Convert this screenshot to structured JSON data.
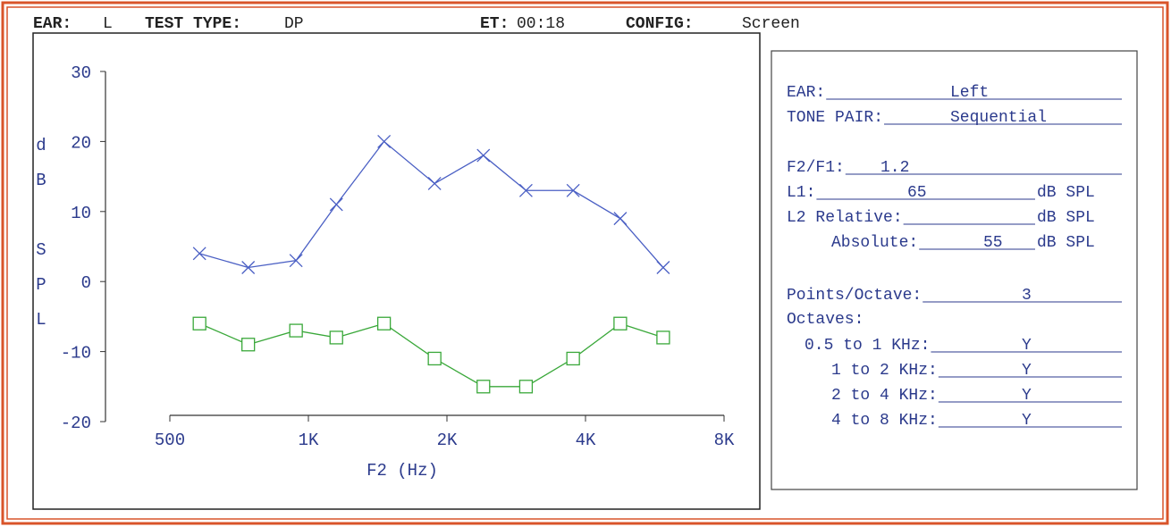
{
  "header": {
    "fields": [
      {
        "label": "EAR:",
        "value": "L"
      },
      {
        "label": "TEST TYPE:",
        "value": "DP"
      },
      {
        "label": "ET:",
        "value": "00:18"
      },
      {
        "label": "CONFIG:",
        "value": "Screen"
      }
    ]
  },
  "chart_data": {
    "type": "line",
    "x_label": "F2 (Hz)",
    "y_label": "dB SPL",
    "x": [
      580,
      740,
      940,
      1150,
      1460,
      1880,
      2400,
      2970,
      3760,
      4760,
      5900
    ],
    "series": [
      {
        "color": "#4a5fc4",
        "marker": "x",
        "values": [
          4,
          2,
          3,
          11,
          20,
          14,
          18,
          13,
          13,
          9,
          2
        ]
      },
      {
        "color": "#3aa83a",
        "marker": "square",
        "values": [
          -6,
          -9,
          -7,
          -8,
          -6,
          -11,
          -15,
          -15,
          -11,
          -6,
          -8
        ]
      }
    ],
    "xscale": "log",
    "xlim": [
      500,
      8000
    ],
    "xticks": [
      500,
      {
        "value": 1000,
        "label": "1K"
      },
      {
        "value": 2000,
        "label": "2K"
      },
      {
        "value": 4000,
        "label": "4K"
      },
      {
        "value": 8000,
        "label": "8K"
      }
    ],
    "ylim": [
      -20,
      30
    ],
    "yticks": [
      -20,
      -10,
      0,
      10,
      20,
      30
    ],
    "grid": false
  },
  "panel": {
    "rows": [
      {
        "label": "EAR:",
        "value": "Left"
      },
      {
        "label": "TONE PAIR:",
        "value": "Sequential"
      },
      {
        "label": "F2/F1:",
        "value": "1.2"
      },
      {
        "label": "L1:",
        "value": "65",
        "unit": "dB SPL"
      },
      {
        "label": "L2 Relative:",
        "unit": "dB SPL"
      },
      {
        "label": "Absolute:",
        "value": "55",
        "unit": "dB SPL"
      },
      {
        "label": "Points/Octave:",
        "value": "3"
      },
      {
        "label": "Octaves:"
      },
      {
        "label": "0.5 to 1 KHz:",
        "value": "Y"
      },
      {
        "label": "1 to 2 KHz:",
        "value": "Y"
      },
      {
        "label": "2 to 4 KHz:",
        "value": "Y"
      },
      {
        "label": "4 to 8 KHz:",
        "value": "Y"
      }
    ]
  }
}
